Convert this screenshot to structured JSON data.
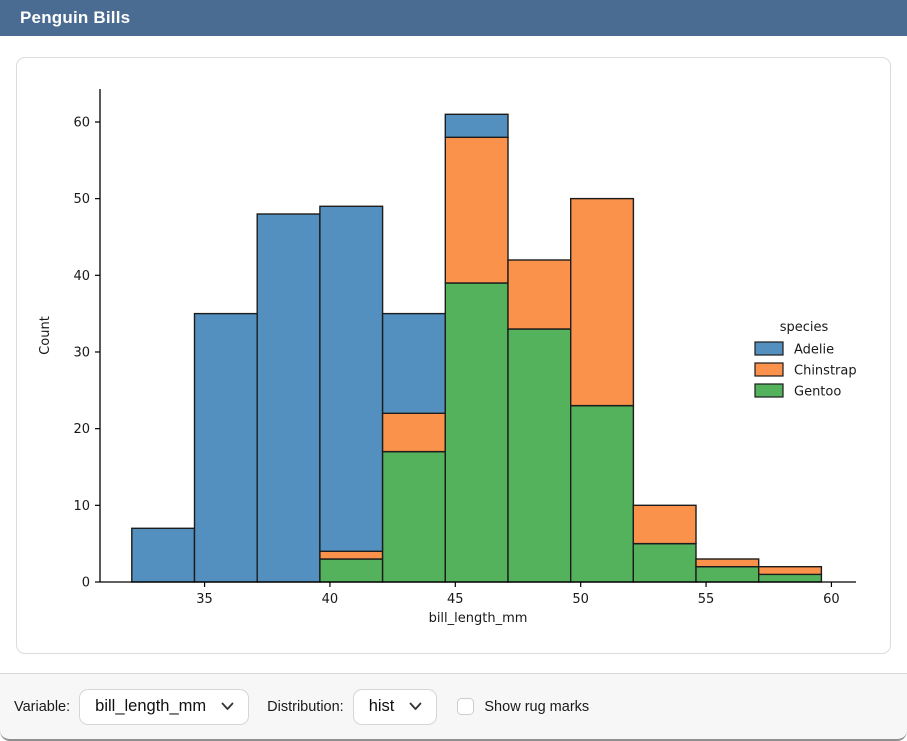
{
  "window": {
    "title": "Penguin Bills"
  },
  "colors": {
    "titlebar": "#4a6b92",
    "adelie_blue": "#5390bf",
    "chinstrap_orange": "#fb924b",
    "gentoo_green": "#54b15c",
    "bar_edge": "#1c1c1c",
    "axis": "#000000"
  },
  "chart_data": {
    "type": "bar",
    "subtype": "stacked-histogram",
    "title": "",
    "xlabel": "bill_length_mm",
    "ylabel": "Count",
    "bin_edges": [
      32.1,
      34.6,
      37.1,
      39.6,
      42.1,
      44.6,
      47.1,
      49.6,
      52.1,
      54.6,
      57.1,
      59.6
    ],
    "series": [
      {
        "name": "Gentoo",
        "color": "#54b15c",
        "values": [
          0,
          0,
          0,
          3,
          17,
          39,
          33,
          23,
          5,
          2,
          1
        ]
      },
      {
        "name": "Chinstrap",
        "color": "#fb924b",
        "values": [
          0,
          0,
          0,
          1,
          5,
          19,
          9,
          27,
          5,
          1,
          1
        ]
      },
      {
        "name": "Adelie",
        "color": "#5390bf",
        "values": [
          7,
          35,
          48,
          45,
          13,
          3,
          0,
          0,
          0,
          0,
          0
        ]
      }
    ],
    "stack_order": "bottom-to-top: Gentoo, Chinstrap, Adelie",
    "bin_totals": [
      7,
      35,
      48,
      49,
      35,
      61,
      42,
      50,
      10,
      3,
      2
    ],
    "xticks": [
      35,
      40,
      45,
      50,
      55,
      60
    ],
    "yticks": [
      0,
      10,
      20,
      30,
      40,
      50,
      60
    ],
    "xlim": [
      30.83,
      60.98
    ],
    "ylim": [
      0,
      64.3
    ],
    "grid": false,
    "legend": {
      "title": "species",
      "entries": [
        "Adelie",
        "Chinstrap",
        "Gentoo"
      ],
      "position": "center-right",
      "frame": false
    }
  },
  "controls": {
    "variable": {
      "label": "Variable:",
      "value": "bill_length_mm"
    },
    "distribution": {
      "label": "Distribution:",
      "value": "hist"
    },
    "rug": {
      "label": "Show rug marks",
      "checked": false
    }
  }
}
